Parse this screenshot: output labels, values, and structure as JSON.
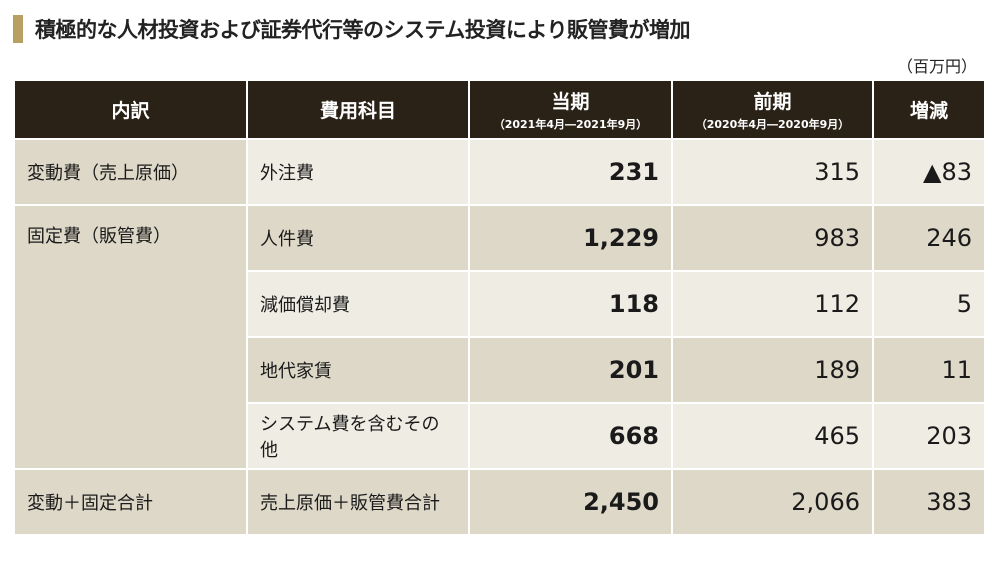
{
  "title": "積極的な人材投資および証券代行等のシステム投資により販管費が増加",
  "unit": "（百万円）",
  "table": {
    "headers": {
      "breakdown": "内訳",
      "item": "費用科目",
      "current": "当期",
      "current_period": "（2021年4月―2021年9月）",
      "previous": "前期",
      "previous_period": "（2020年4月―2020年9月）",
      "change": "増減"
    },
    "rows": [
      {
        "category": "変動費（売上原価）",
        "item": "外注費",
        "current": "231",
        "previous": "315",
        "change": "▲83"
      },
      {
        "category": "固定費（販管費）",
        "item": "人件費",
        "current": "1,229",
        "previous": "983",
        "change": "246"
      },
      {
        "category": "",
        "item": "減価償却費",
        "current": "118",
        "previous": "112",
        "change": "5"
      },
      {
        "category": "",
        "item": "地代家賃",
        "current": "201",
        "previous": "189",
        "change": "11"
      },
      {
        "category": "",
        "item": "システム費を含むその他",
        "current": "668",
        "previous": "465",
        "change": "203"
      },
      {
        "category": "変動＋固定合計",
        "item": "売上原価＋販管費合計",
        "current": "2,450",
        "previous": "2,066",
        "change": "383"
      }
    ]
  }
}
